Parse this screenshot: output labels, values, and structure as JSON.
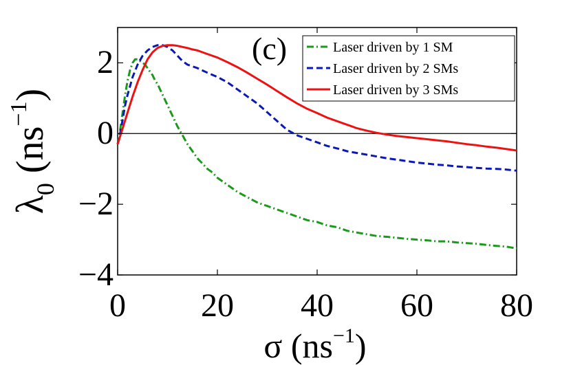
{
  "chart_data": {
    "type": "line",
    "panel_label": "(c)",
    "xlabel": "σ (ns",
    "xlabel_exp": "−1",
    "xlabel_close": ")",
    "ylabel_base": "λ",
    "ylabel_sub": "0",
    "ylabel_unit": " (ns",
    "ylabel_exp": "−1",
    "ylabel_close": ")",
    "xlim": [
      0,
      80
    ],
    "ylim": [
      -4,
      3
    ],
    "xticks": [
      0,
      20,
      40,
      60,
      80
    ],
    "xtick_labels": [
      "0",
      "20",
      "40",
      "60",
      "80"
    ],
    "yticks": [
      -4,
      -2,
      0,
      2
    ],
    "ytick_labels": [
      "−4",
      "−2",
      "0",
      "2"
    ],
    "zero_line": 0,
    "legend_position": "top-right",
    "series": [
      {
        "name": "Laser driven by 1 SM",
        "color": "#1a9a1a",
        "style": "dashdot",
        "x": [
          0,
          0.5,
          1,
          1.5,
          2,
          2.5,
          3,
          3.5,
          4,
          4.5,
          5,
          5.5,
          6,
          6.5,
          7,
          7.5,
          8,
          9,
          10,
          11,
          12,
          13,
          14,
          15,
          16,
          17,
          18,
          19,
          20,
          22,
          24,
          26,
          28,
          30,
          32,
          34,
          36,
          38,
          40,
          42,
          44,
          46,
          48,
          50,
          52,
          54,
          56,
          58,
          60,
          62,
          64,
          66,
          68,
          70,
          72,
          74,
          76,
          78,
          80
        ],
        "y": [
          -0.3,
          0.1,
          0.6,
          1.1,
          1.5,
          1.8,
          2.0,
          2.1,
          2.1,
          2.05,
          2.0,
          1.95,
          1.85,
          1.75,
          1.65,
          1.5,
          1.4,
          1.1,
          0.8,
          0.5,
          0.2,
          -0.05,
          -0.3,
          -0.5,
          -0.7,
          -0.85,
          -1.0,
          -1.1,
          -1.25,
          -1.45,
          -1.65,
          -1.8,
          -1.95,
          -2.05,
          -2.15,
          -2.25,
          -2.35,
          -2.45,
          -2.5,
          -2.6,
          -2.65,
          -2.75,
          -2.8,
          -2.85,
          -2.9,
          -2.92,
          -2.95,
          -2.98,
          -3.0,
          -3.02,
          -3.05,
          -3.05,
          -3.08,
          -3.1,
          -3.12,
          -3.15,
          -3.18,
          -3.2,
          -3.25
        ]
      },
      {
        "name": "Laser driven by 2 SMs",
        "color": "#0a18b4",
        "style": "dashed",
        "x": [
          0,
          0.5,
          1,
          1.5,
          2,
          3,
          4,
          5,
          6,
          7,
          8,
          9,
          10,
          11,
          12,
          13,
          14,
          15,
          16,
          18,
          20,
          22,
          24,
          26,
          28,
          30,
          32,
          34,
          36,
          38,
          40,
          42,
          44,
          46,
          48,
          50,
          52,
          54,
          56,
          58,
          60,
          62,
          64,
          66,
          68,
          70,
          72,
          74,
          76,
          78,
          80
        ],
        "y": [
          -0.3,
          0.0,
          0.4,
          0.8,
          1.1,
          1.6,
          1.95,
          2.2,
          2.35,
          2.45,
          2.5,
          2.5,
          2.45,
          2.35,
          2.2,
          2.05,
          1.95,
          1.9,
          1.85,
          1.72,
          1.6,
          1.45,
          1.25,
          1.05,
          0.85,
          0.6,
          0.35,
          0.1,
          -0.05,
          -0.15,
          -0.25,
          -0.35,
          -0.42,
          -0.5,
          -0.55,
          -0.6,
          -0.65,
          -0.7,
          -0.74,
          -0.78,
          -0.82,
          -0.85,
          -0.88,
          -0.9,
          -0.93,
          -0.95,
          -0.97,
          -0.99,
          -1.0,
          -1.02,
          -1.05
        ]
      },
      {
        "name": "Laser driven by 3 SMs",
        "color": "#ee1111",
        "style": "solid",
        "x": [
          0,
          1,
          2,
          3,
          4,
          5,
          6,
          7,
          8,
          9,
          10,
          11,
          12,
          13,
          14,
          15,
          16,
          18,
          20,
          22,
          24,
          26,
          28,
          30,
          32,
          34,
          36,
          38,
          40,
          42,
          44,
          46,
          48,
          50,
          52,
          54,
          56,
          58,
          60,
          62,
          64,
          66,
          68,
          70,
          72,
          74,
          76,
          78,
          80
        ],
        "y": [
          -0.3,
          0.15,
          0.6,
          1.05,
          1.45,
          1.8,
          2.1,
          2.3,
          2.42,
          2.48,
          2.5,
          2.5,
          2.48,
          2.45,
          2.42,
          2.38,
          2.35,
          2.25,
          2.15,
          2.02,
          1.88,
          1.72,
          1.55,
          1.38,
          1.2,
          1.02,
          0.85,
          0.7,
          0.58,
          0.45,
          0.35,
          0.25,
          0.15,
          0.08,
          0.02,
          -0.03,
          -0.07,
          -0.1,
          -0.13,
          -0.16,
          -0.19,
          -0.22,
          -0.26,
          -0.3,
          -0.33,
          -0.37,
          -0.4,
          -0.44,
          -0.48
        ]
      }
    ]
  }
}
